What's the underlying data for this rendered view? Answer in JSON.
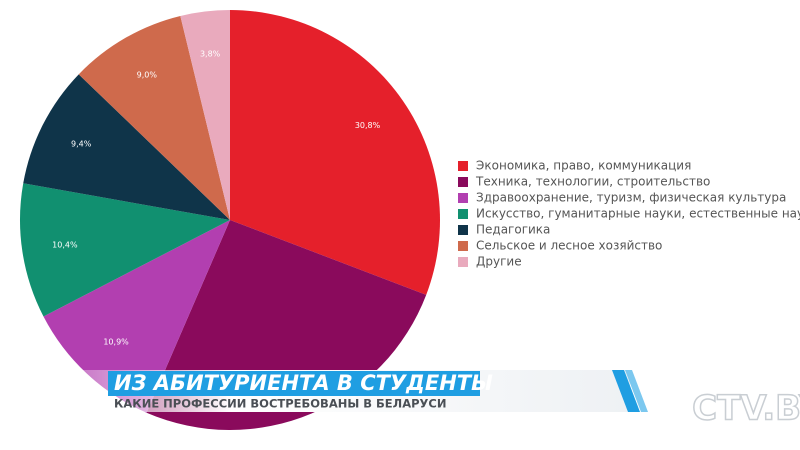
{
  "chart_data": {
    "type": "pie",
    "categories": [
      "Экономика, право, коммуникация",
      "Техника, технологии, строительство",
      "Здравоохранение, туризм, физическая культура",
      "Искусство, гуманитарные науки, естественные науки",
      "Педагогика",
      "Сельское и лесное хозяйство",
      "Другие"
    ],
    "values": [
      30.8,
      25.7,
      10.9,
      10.4,
      9.4,
      9.0,
      3.8
    ],
    "value_labels": [
      "30,8%",
      null,
      "10,9%",
      "10,4%",
      "9,4%",
      "9,0%",
      "3,8%"
    ],
    "colors": [
      "#e5202b",
      "#8a0a5c",
      "#b23fb0",
      "#119070",
      "#0f3449",
      "#cf6a4c",
      "#e9aabd"
    ],
    "legend": "right"
  },
  "banner": {
    "title": "ИЗ АБИТУРИЕНТА В СТУДЕНТЫ",
    "subtitle": "КАКИЕ ПРОФЕССИИ ВОСТРЕБОВАНЫ В БЕЛАРУСИ"
  },
  "logo": "CTV.BY"
}
